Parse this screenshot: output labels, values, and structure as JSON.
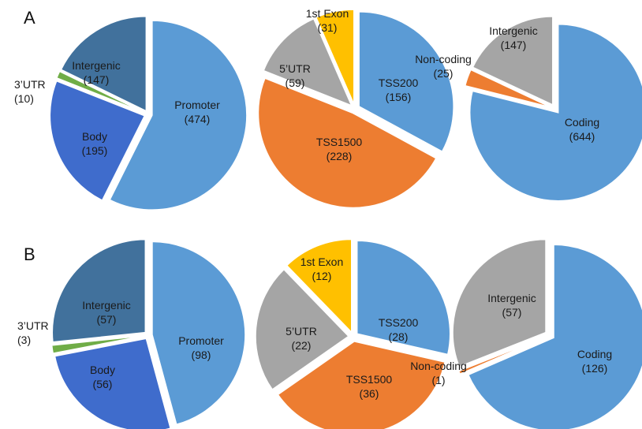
{
  "colors": {
    "promoter": "#5b9bd5",
    "intergenic_region": "#41719c",
    "body": "#3f6ccc",
    "utr3": "#70ad47",
    "tss200": "#5b9bd5",
    "tss1500": "#ed7d31",
    "utr5": "#a5a5a5",
    "exon1": "#ffc000",
    "coding": "#5b9bd5",
    "noncoding": "#ed7d31",
    "intergenic_gene": "#a5a5a5"
  },
  "panels": [
    {
      "letter": "A"
    },
    {
      "letter": "B"
    }
  ],
  "chart_data": [
    {
      "type": "pie",
      "panel": "A",
      "slices": [
        {
          "label": "Promoter",
          "value_text": "(474)",
          "value": 474,
          "color_key": "promoter"
        },
        {
          "label": "Body",
          "value_text": "(195)",
          "value": 195,
          "color_key": "body"
        },
        {
          "label": "3’UTR",
          "value_text": "(10)",
          "value": 10,
          "color_key": "utr3"
        },
        {
          "label": "Intergenic",
          "value_text": "(147)",
          "value": 147,
          "color_key": "intergenic_region"
        }
      ]
    },
    {
      "type": "pie",
      "panel": "A",
      "slices": [
        {
          "label": "TSS200",
          "value_text": "(156)",
          "value": 156,
          "color_key": "tss200"
        },
        {
          "label": "TSS1500",
          "value_text": "(228)",
          "value": 228,
          "color_key": "tss1500"
        },
        {
          "label": "5’UTR",
          "value_text": "(59)",
          "value": 59,
          "color_key": "utr5"
        },
        {
          "label": "1st Exon",
          "value_text": "(31)",
          "value": 31,
          "color_key": "exon1"
        }
      ]
    },
    {
      "type": "pie",
      "panel": "A",
      "slices": [
        {
          "label": "Coding",
          "value_text": "(644)",
          "value": 644,
          "color_key": "coding"
        },
        {
          "label": "Non-coding",
          "value_text": "(25)",
          "value": 25,
          "color_key": "noncoding"
        },
        {
          "label": "Intergenic",
          "value_text": "(147)",
          "value": 147,
          "color_key": "intergenic_gene"
        }
      ]
    },
    {
      "type": "pie",
      "panel": "B",
      "slices": [
        {
          "label": "Promoter",
          "value_text": "(98)",
          "value": 98,
          "color_key": "promoter"
        },
        {
          "label": "Body",
          "value_text": "(56)",
          "value": 56,
          "color_key": "body"
        },
        {
          "label": "3’UTR",
          "value_text": "(3)",
          "value": 3,
          "color_key": "utr3"
        },
        {
          "label": "Intergenic",
          "value_text": "(57)",
          "value": 57,
          "color_key": "intergenic_region"
        }
      ]
    },
    {
      "type": "pie",
      "panel": "B",
      "slices": [
        {
          "label": "TSS200",
          "value_text": "(28)",
          "value": 28,
          "color_key": "tss200"
        },
        {
          "label": "TSS1500",
          "value_text": "(36)",
          "value": 36,
          "color_key": "tss1500"
        },
        {
          "label": "5’UTR",
          "value_text": "(22)",
          "value": 22,
          "color_key": "utr5"
        },
        {
          "label": "1st Exon",
          "value_text": "(12)",
          "value": 12,
          "color_key": "exon1"
        }
      ]
    },
    {
      "type": "pie",
      "panel": "B",
      "slices": [
        {
          "label": "Coding",
          "value_text": "(126)",
          "value": 126,
          "color_key": "coding"
        },
        {
          "label": "Non-coding",
          "value_text": "(1)",
          "value": 1,
          "color_key": "noncoding"
        },
        {
          "label": "Intergenic",
          "value_text": "(57)",
          "value": 57,
          "color_key": "intergenic_gene"
        }
      ]
    }
  ]
}
